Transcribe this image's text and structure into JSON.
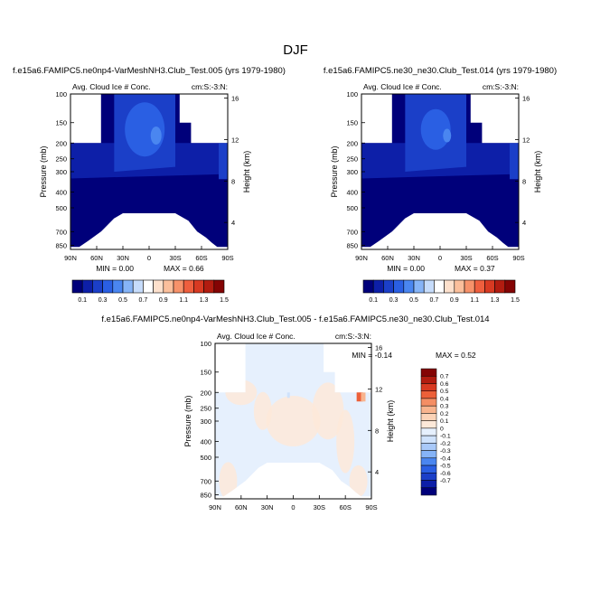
{
  "figure_title": "DJF",
  "colors": {
    "seq": [
      "#00007a",
      "#0d1fa8",
      "#1b3fc8",
      "#2a5fe3",
      "#4a86f0",
      "#86b4f7",
      "#c6dcfb",
      "#ffffff",
      "#fde0cc",
      "#fbbf9c",
      "#f7926a",
      "#ef5f3e",
      "#d83a22",
      "#b21c10",
      "#840404"
    ],
    "diff": [
      "#00007a",
      "#0d1fa8",
      "#1b3fc8",
      "#2a5fe3",
      "#4a86f0",
      "#86b4f7",
      "#a9c9f9",
      "#cfe2fc",
      "#e6f0fd",
      "#fde9d9",
      "#fbd3b7",
      "#f8b48e",
      "#f48e64",
      "#ec6039",
      "#d83a22",
      "#b21c10",
      "#840404"
    ]
  },
  "chart_data": [
    {
      "id": "panel1",
      "type": "heatmap",
      "title": "f.e15a6.FAMIPC5.ne0np4-VarMeshNH3.Club_Test.005 (yrs 1979-1980)",
      "left_label": "Avg. Cloud Ice # Conc.",
      "right_label": "cm:S:-3:N:",
      "xlabel": "",
      "ylabel": "Pressure (mb)",
      "ylabel_right": "Height (km)",
      "x_ticks": [
        "90N",
        "60N",
        "30N",
        "0",
        "30S",
        "60S",
        "90S"
      ],
      "x_tick_values": [
        90,
        60,
        30,
        0,
        -30,
        -60,
        -90
      ],
      "y_ticks": [
        "100",
        "150",
        "200",
        "250",
        "300",
        "400",
        "500",
        "700",
        "850"
      ],
      "y_tick_values": [
        100,
        150,
        200,
        250,
        300,
        400,
        500,
        700,
        850
      ],
      "yr_ticks": [
        "16",
        "12",
        "8",
        "4"
      ],
      "yr_tick_values": [
        16,
        12,
        8,
        4
      ],
      "ylim": [
        100,
        900
      ],
      "xlim": [
        90,
        -90
      ],
      "min_label": "MIN =  0.00",
      "max_label": "MAX =  0.66",
      "min": 0.0,
      "max": 0.66
    },
    {
      "id": "panel2",
      "type": "heatmap",
      "title": "f.e15a6.FAMIPC5.ne30_ne30.Club_Test.014 (yrs 1979-1980)",
      "left_label": "Avg. Cloud Ice # Conc.",
      "right_label": "cm:S:-3:N:",
      "xlabel": "",
      "ylabel": "Pressure (mb)",
      "ylabel_right": "Height (km)",
      "x_ticks": [
        "90N",
        "60N",
        "30N",
        "0",
        "30S",
        "60S",
        "90S"
      ],
      "x_tick_values": [
        90,
        60,
        30,
        0,
        -30,
        -60,
        -90
      ],
      "y_ticks": [
        "100",
        "150",
        "200",
        "250",
        "300",
        "400",
        "500",
        "700",
        "850"
      ],
      "y_tick_values": [
        100,
        150,
        200,
        250,
        300,
        400,
        500,
        700,
        850
      ],
      "yr_ticks": [
        "16",
        "12",
        "8",
        "4"
      ],
      "yr_tick_values": [
        16,
        12,
        8,
        4
      ],
      "ylim": [
        100,
        900
      ],
      "xlim": [
        90,
        -90
      ],
      "min_label": "MIN =  0.00",
      "max_label": "MAX =  0.37",
      "min": 0.0,
      "max": 0.37
    },
    {
      "id": "panel3",
      "type": "heatmap",
      "title": "f.e15a6.FAMIPC5.ne0np4-VarMeshNH3.Club_Test.005 - f.e15a6.FAMIPC5.ne30_ne30.Club_Test.014",
      "left_label": "Avg. Cloud Ice # Conc.",
      "right_label": "cm:S:-3:N:",
      "xlabel": "",
      "ylabel": "Pressure (mb)",
      "ylabel_right": "Height (km)",
      "x_ticks": [
        "90N",
        "60N",
        "30N",
        "0",
        "30S",
        "60S",
        "90S"
      ],
      "x_tick_values": [
        90,
        60,
        30,
        0,
        -30,
        -60,
        -90
      ],
      "y_ticks": [
        "100",
        "150",
        "200",
        "250",
        "300",
        "400",
        "500",
        "700",
        "850"
      ],
      "y_tick_values": [
        100,
        150,
        200,
        250,
        300,
        400,
        500,
        700,
        850
      ],
      "yr_ticks": [
        "16",
        "12",
        "8",
        "4"
      ],
      "yr_tick_values": [
        16,
        12,
        8,
        4
      ],
      "ylim": [
        100,
        900
      ],
      "xlim": [
        90,
        -90
      ],
      "min_label": "MIN = -0.14",
      "max_label": "MAX =  0.52",
      "min": -0.14,
      "max": 0.52
    }
  ],
  "colorbar_seq": {
    "labels": [
      "0.1",
      "0.3",
      "0.5",
      "0.7",
      "0.9",
      "1.1",
      "1.3",
      "1.5"
    ],
    "levels": [
      0.1,
      0.2,
      0.3,
      0.4,
      0.5,
      0.6,
      0.7,
      0.8,
      0.9,
      1.0,
      1.1,
      1.2,
      1.3,
      1.4,
      1.5
    ]
  },
  "colorbar_diff": {
    "labels": [
      "0.7",
      "0.6",
      "0.5",
      "0.4",
      "0.3",
      "0.2",
      "0.1",
      "0",
      "-0.1",
      "-0.2",
      "-0.3",
      "-0.4",
      "-0.5",
      "-0.6",
      "-0.7"
    ],
    "levels": [
      0.7,
      0.6,
      0.5,
      0.4,
      0.3,
      0.2,
      0.1,
      0,
      -0.1,
      -0.2,
      -0.3,
      -0.4,
      -0.5,
      -0.6,
      -0.7
    ]
  }
}
